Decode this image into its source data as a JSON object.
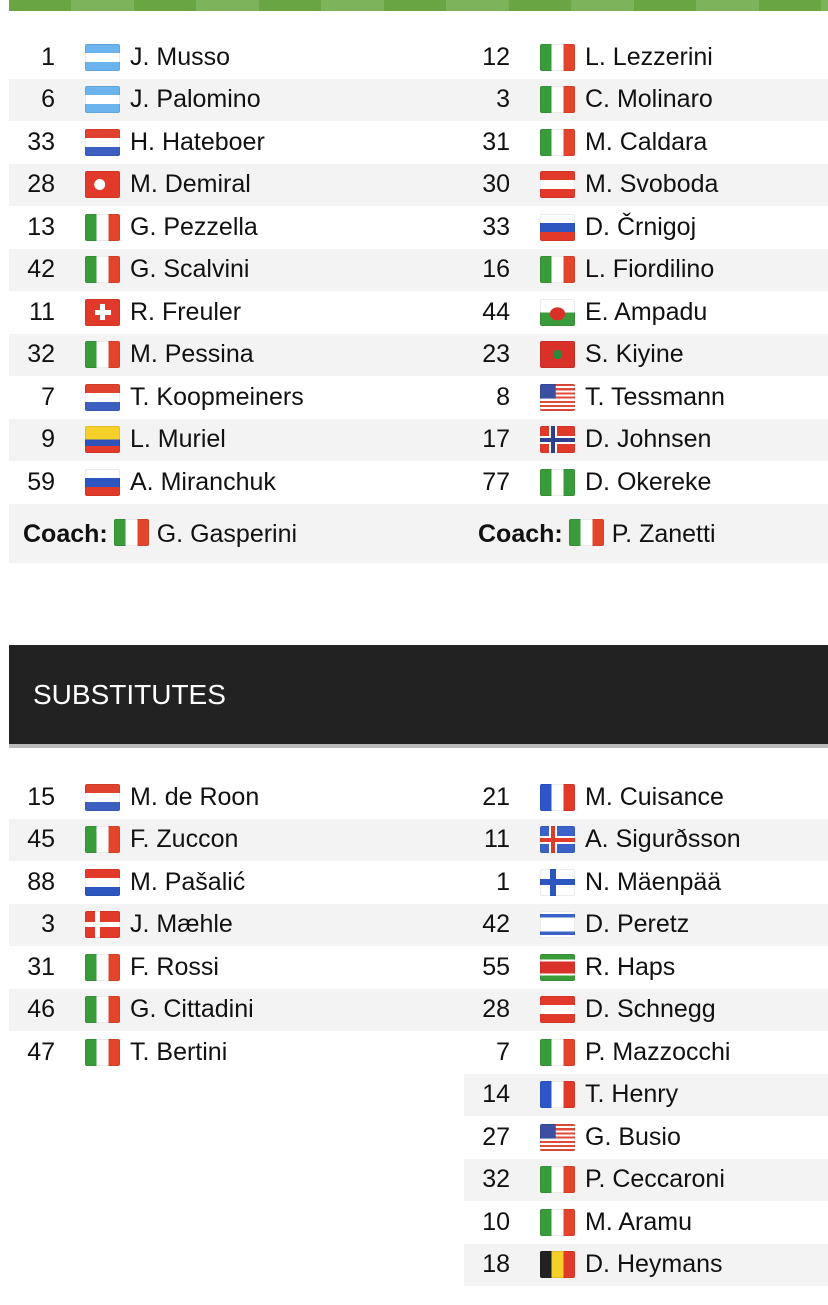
{
  "lineups": {
    "home": [
      {
        "num": "1",
        "flag": "ar",
        "name": "J. Musso"
      },
      {
        "num": "6",
        "flag": "ar",
        "name": "J. Palomino"
      },
      {
        "num": "33",
        "flag": "nl",
        "name": "H. Hateboer"
      },
      {
        "num": "28",
        "flag": "tr",
        "name": "M. Demiral"
      },
      {
        "num": "13",
        "flag": "it",
        "name": "G. Pezzella"
      },
      {
        "num": "42",
        "flag": "it",
        "name": "G. Scalvini"
      },
      {
        "num": "11",
        "flag": "ch",
        "name": "R. Freuler"
      },
      {
        "num": "32",
        "flag": "it",
        "name": "M. Pessina"
      },
      {
        "num": "7",
        "flag": "nl",
        "name": "T. Koopmeiners"
      },
      {
        "num": "9",
        "flag": "co",
        "name": "L. Muriel"
      },
      {
        "num": "59",
        "flag": "ru",
        "name": "A. Miranchuk"
      }
    ],
    "away": [
      {
        "num": "12",
        "flag": "it",
        "name": "L. Lezzerini"
      },
      {
        "num": "3",
        "flag": "it",
        "name": "C. Molinaro"
      },
      {
        "num": "31",
        "flag": "it",
        "name": "M. Caldara"
      },
      {
        "num": "30",
        "flag": "at",
        "name": "M. Svoboda"
      },
      {
        "num": "33",
        "flag": "si",
        "name": "D. Črnigoj"
      },
      {
        "num": "16",
        "flag": "it",
        "name": "L. Fiordilino"
      },
      {
        "num": "44",
        "flag": "wales",
        "name": "E. Ampadu"
      },
      {
        "num": "23",
        "flag": "ma",
        "name": "S. Kiyine"
      },
      {
        "num": "8",
        "flag": "us",
        "name": "T. Tessmann"
      },
      {
        "num": "17",
        "flag": "no",
        "name": "D. Johnsen"
      },
      {
        "num": "77",
        "flag": "ng",
        "name": "D. Okereke"
      }
    ],
    "home_coach": {
      "label": "Coach:",
      "flag": "it",
      "name": "G. Gasperini"
    },
    "away_coach": {
      "label": "Coach:",
      "flag": "it",
      "name": "P. Zanetti"
    }
  },
  "substitutes": {
    "title": "SUBSTITUTES",
    "home": [
      {
        "num": "15",
        "flag": "nl",
        "name": "M. de Roon"
      },
      {
        "num": "45",
        "flag": "it",
        "name": "F. Zuccon"
      },
      {
        "num": "88",
        "flag": "hr",
        "name": "M. Pašalić"
      },
      {
        "num": "3",
        "flag": "dk",
        "name": "J. Mæhle"
      },
      {
        "num": "31",
        "flag": "it",
        "name": "F. Rossi"
      },
      {
        "num": "46",
        "flag": "it",
        "name": "G. Cittadini"
      },
      {
        "num": "47",
        "flag": "it",
        "name": "T. Bertini"
      }
    ],
    "away": [
      {
        "num": "21",
        "flag": "fr",
        "name": "M. Cuisance"
      },
      {
        "num": "11",
        "flag": "is",
        "name": "A. Sigurðsson"
      },
      {
        "num": "1",
        "flag": "fi",
        "name": "N. Mäenpää"
      },
      {
        "num": "42",
        "flag": "il",
        "name": "D. Peretz"
      },
      {
        "num": "55",
        "flag": "sr",
        "name": "R. Haps"
      },
      {
        "num": "28",
        "flag": "at",
        "name": "D. Schnegg"
      },
      {
        "num": "7",
        "flag": "it",
        "name": "P. Mazzocchi"
      },
      {
        "num": "14",
        "flag": "fr",
        "name": "T. Henry"
      },
      {
        "num": "27",
        "flag": "us",
        "name": "G. Busio"
      },
      {
        "num": "32",
        "flag": "it",
        "name": "P. Ceccaroni"
      },
      {
        "num": "10",
        "flag": "it",
        "name": "M. Aramu"
      },
      {
        "num": "18",
        "flag": "be",
        "name": "D. Heymans"
      }
    ]
  },
  "colors": {
    "stripe": "#6aa544",
    "header_bg": "#222222",
    "row_alt": "#f3f3f3"
  }
}
